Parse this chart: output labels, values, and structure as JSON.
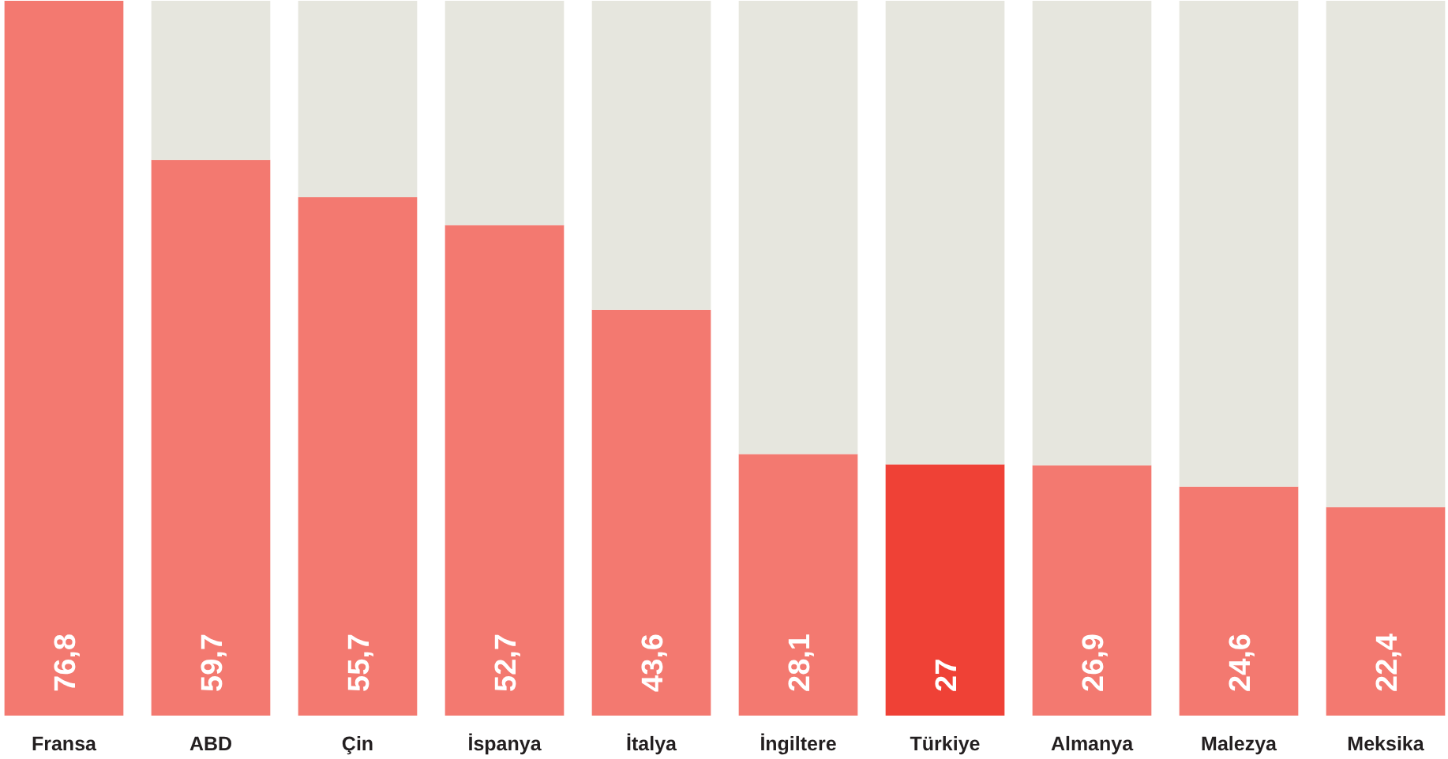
{
  "chart_data": {
    "type": "bar",
    "stacked": true,
    "categories": [
      "Fransa",
      "ABD",
      "Çin",
      "İspanya",
      "İtalya",
      "İngiltere",
      "Türkiye",
      "Almanya",
      "Malezya",
      "Meksika"
    ],
    "series": [
      {
        "colors": [
          "#f37970",
          "#f37970",
          "#f37970",
          "#f37970",
          "#f37970",
          "#f37970",
          "#ef4136",
          "#f37970",
          "#f37970",
          "#f37970"
        ],
        "values": [
          76.8,
          59.7,
          55.7,
          52.7,
          43.6,
          28.1,
          27,
          26.9,
          24.6,
          22.4
        ],
        "value_labels": [
          "76,8",
          "59,7",
          "55,7",
          "52,7",
          "43,6",
          "28,1",
          "27",
          "26,9",
          "24,6",
          "22,4"
        ]
      },
      {
        "color": "#e6e6de",
        "values": [
          null,
          17.1,
          21.1,
          24.1,
          33.2,
          48.7,
          49.8,
          49.9,
          52.2,
          54.4
        ]
      }
    ],
    "ylim": [
      0,
      76.8
    ],
    "tick_labels": "x",
    "grid": false
  }
}
